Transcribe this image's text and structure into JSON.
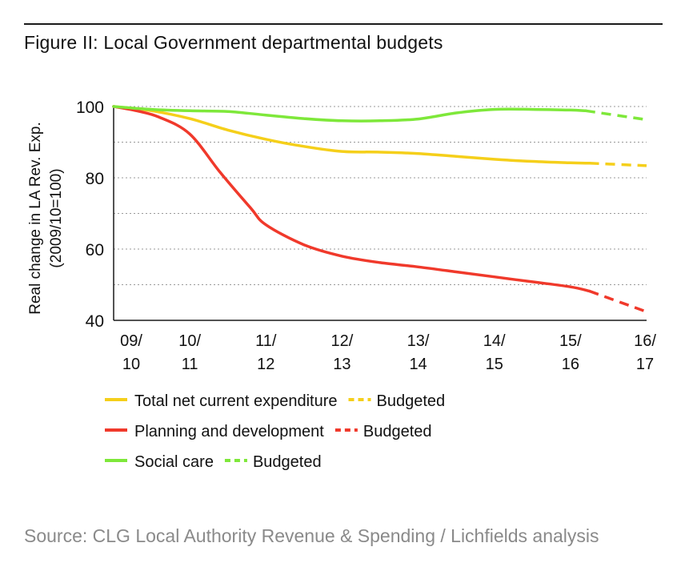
{
  "header": {
    "title": "Figure II: Local Government departmental budgets"
  },
  "footer": {
    "source": "Source: CLG Local Authority Revenue & Spending / Lichfields analysis"
  },
  "chart_data": {
    "type": "line",
    "ylabel_lines": [
      "Real change in LA Rev. Exp.",
      "(2009/10=100)"
    ],
    "x_ticks": [
      {
        "x": 0,
        "line1": "09/",
        "line2": "10"
      },
      {
        "x": 1,
        "line1": "10/",
        "line2": "11"
      },
      {
        "x": 2,
        "line1": "11/",
        "line2": "12"
      },
      {
        "x": 3,
        "line1": "12/",
        "line2": "13"
      },
      {
        "x": 4,
        "line1": "13/",
        "line2": "14"
      },
      {
        "x": 5,
        "line1": "14/",
        "line2": "15"
      },
      {
        "x": 6,
        "line1": "15/",
        "line2": "16"
      },
      {
        "x": 7,
        "line1": "16/",
        "line2": "17"
      }
    ],
    "xlim": [
      0,
      7
    ],
    "ylim": [
      40,
      100
    ],
    "y_ticks": [
      40,
      60,
      80,
      100
    ],
    "y_gridlines": [
      50,
      60,
      70,
      80,
      90,
      100
    ],
    "series": [
      {
        "name": "Total net current expenditure",
        "budget_name": "Budgeted",
        "color": "#f5cf1a",
        "x": [
          0,
          0.5,
          1,
          1.5,
          2,
          2.5,
          3,
          3.5,
          4,
          4.5,
          5,
          5.5,
          6,
          6.25
        ],
        "values": [
          100,
          98.8,
          96.6,
          93.4,
          90.8,
          88.8,
          87.4,
          87.2,
          86.8,
          86,
          85.2,
          84.6,
          84.2,
          84.1
        ],
        "budget_x": [
          6.25,
          7
        ],
        "budget_values": [
          84.1,
          83.4
        ]
      },
      {
        "name": "Planning and development",
        "budget_name": "Budgeted",
        "color": "#f0392b",
        "x": [
          0,
          0.3,
          0.6,
          1,
          1.4,
          1.8,
          2,
          2.5,
          3,
          3.5,
          4,
          4.5,
          5,
          5.5,
          6,
          6.25
        ],
        "values": [
          100,
          98.8,
          97,
          92.3,
          81.5,
          71.5,
          66.8,
          61.2,
          58,
          56.2,
          55,
          53.6,
          52.2,
          50.8,
          49.4,
          48.2
        ],
        "budget_x": [
          6.25,
          7
        ],
        "budget_values": [
          48.2,
          42.4
        ]
      },
      {
        "name": "Social care",
        "budget_name": "Budgeted",
        "color": "#7ee83a",
        "x": [
          0,
          0.5,
          1,
          1.5,
          2,
          2.5,
          3,
          3.5,
          4,
          4.5,
          5,
          5.5,
          6,
          6.2
        ],
        "values": [
          100,
          99.2,
          98.8,
          98.6,
          97.6,
          96.6,
          96.0,
          96.0,
          96.5,
          98.2,
          99.2,
          99.2,
          99.0,
          98.8
        ],
        "budget_x": [
          6.2,
          7
        ],
        "budget_values": [
          98.8,
          96.3
        ]
      }
    ],
    "legend_placement": "bottom-left",
    "grid": true
  }
}
